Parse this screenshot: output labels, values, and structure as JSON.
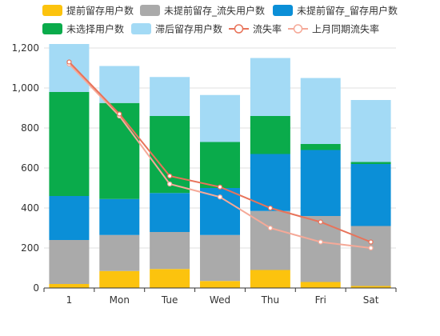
{
  "chart_data": {
    "type": "bar",
    "stacked": true,
    "categories": [
      "1",
      "Mon",
      "Tue",
      "Wed",
      "Thu",
      "Fri",
      "Sat"
    ],
    "ylim": [
      0,
      1200
    ],
    "yticks": [
      "0",
      "200",
      "400",
      "600",
      "800",
      "1,000",
      "1,200"
    ],
    "grid": true,
    "legend_position": "top",
    "series": [
      {
        "name": "提前留存用户数",
        "kind": "bar",
        "color": "#fcc30e",
        "values": [
          20,
          85,
          95,
          35,
          90,
          30,
          10
        ]
      },
      {
        "name": "未提前留存_流失用户数",
        "kind": "bar",
        "color": "#aaaaaa",
        "values": [
          220,
          180,
          185,
          230,
          295,
          330,
          300
        ]
      },
      {
        "name": "未提前留存_留存用户数",
        "kind": "bar",
        "color": "#0b8fd7",
        "values": [
          220,
          180,
          195,
          235,
          285,
          330,
          310
        ]
      },
      {
        "name": "未选择用户数",
        "kind": "bar",
        "color": "#0aab4b",
        "values": [
          520,
          480,
          385,
          230,
          190,
          30,
          10
        ]
      },
      {
        "name": "滞后留存用户数",
        "kind": "bar",
        "color": "#a3daf5",
        "values": [
          240,
          185,
          195,
          235,
          290,
          330,
          310
        ]
      },
      {
        "name": "流失率",
        "kind": "line",
        "color": "#e8735a",
        "values": [
          1130,
          870,
          560,
          505,
          400,
          330,
          230
        ]
      },
      {
        "name": "上月同期流失率",
        "kind": "line",
        "color": "#f5a998",
        "values": [
          1120,
          860,
          520,
          455,
          300,
          230,
          200
        ]
      }
    ]
  }
}
